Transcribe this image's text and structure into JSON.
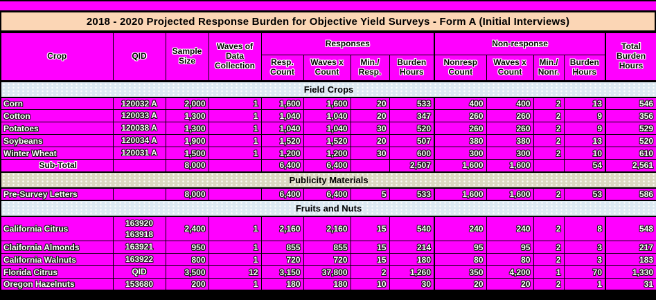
{
  "title": "2018 - 2020 Projected Response Burden for Objective Yield Surveys - Form A (Initial Interviews)",
  "colors": {
    "table_background": "#FF00FF",
    "title_background": "#FBD6B5",
    "section_band_blue": "#DCE9F2",
    "section_band_khaki": "#DBD8C1",
    "border": "#000000",
    "data_text": "#FFFFFF",
    "header_text": "#000000"
  },
  "header": {
    "crop": "Crop",
    "qid": "QID",
    "sample_size": "Sample Size",
    "waves_of_data_collection": "Waves of Data Collection",
    "responses": "Responses",
    "non_response": "Non-response",
    "total_burden_hours": "Total Burden Hours",
    "resp_subcols": [
      "Resp. Count",
      "Waves x Count",
      "Min./ Resp.",
      "Burden Hours"
    ],
    "nonresp_subcols": [
      "Nonresp Count",
      "Waves x Count",
      "Min./ Nonr.",
      "Burden Hours"
    ]
  },
  "sections": [
    {
      "name": "Field Crops",
      "band_color": "blue",
      "rows": [
        {
          "crop": "Corn",
          "qid": "120032 A",
          "values": [
            "2,000",
            "1",
            "1,600",
            "1,600",
            "20",
            "533",
            "400",
            "400",
            "2",
            "13",
            "546"
          ]
        },
        {
          "crop": "Cotton",
          "qid": "120033 A",
          "values": [
            "1,300",
            "1",
            "1,040",
            "1,040",
            "20",
            "347",
            "260",
            "260",
            "2",
            "9",
            "356"
          ]
        },
        {
          "crop": "Potatoes",
          "qid": "120038 A",
          "values": [
            "1,300",
            "1",
            "1,040",
            "1,040",
            "30",
            "520",
            "260",
            "260",
            "2",
            "9",
            "529"
          ]
        },
        {
          "crop": "Soybeans",
          "qid": "120034 A",
          "values": [
            "1,900",
            "1",
            "1,520",
            "1,520",
            "20",
            "507",
            "380",
            "380",
            "2",
            "13",
            "520"
          ]
        },
        {
          "crop": "Winter Wheat",
          "qid": "120031 A",
          "values": [
            "1,500",
            "1",
            "1,200",
            "1,200",
            "30",
            "600",
            "300",
            "300",
            "2",
            "10",
            "610"
          ]
        },
        {
          "crop": "Sub-Total",
          "qid": "",
          "subtotal": true,
          "values": [
            "8,000",
            "",
            "6,400",
            "6,400",
            "",
            "2,507",
            "1,600",
            "1,600",
            "",
            "54",
            "2,561"
          ]
        }
      ]
    },
    {
      "name": "Publicity Materials",
      "band_color": "khaki",
      "rows": [
        {
          "crop": "Pre-Survey Letters",
          "qid": "",
          "values": [
            "8,000",
            "",
            "6,400",
            "6,400",
            "5",
            "533",
            "1,600",
            "1,600",
            "2",
            "53",
            "586"
          ]
        }
      ]
    },
    {
      "name": "Fruits and Nuts",
      "band_color": "blue",
      "rows": [
        {
          "crop": "California Citrus",
          "qid": "163920\n163918",
          "tall": true,
          "values": [
            "2,400",
            "1",
            "2,160",
            "2,160",
            "15",
            "540",
            "240",
            "240",
            "2",
            "8",
            "548"
          ]
        },
        {
          "crop": "Claifornia Almonds",
          "qid": "163921",
          "values": [
            "950",
            "1",
            "855",
            "855",
            "15",
            "214",
            "95",
            "95",
            "2",
            "3",
            "217"
          ]
        },
        {
          "crop": "California Walnuts",
          "qid": "163922",
          "values": [
            "800",
            "1",
            "720",
            "720",
            "15",
            "180",
            "80",
            "80",
            "2",
            "3",
            "183"
          ]
        },
        {
          "crop": "Florida Citrus",
          "qid": "QID",
          "values": [
            "3,500",
            "12",
            "3,150",
            "37,800",
            "2",
            "1,260",
            "350",
            "4,200",
            "1",
            "70",
            "1,330"
          ]
        },
        {
          "crop": "Oregon Hazelnuts",
          "qid": "153680",
          "values": [
            "200",
            "1",
            "180",
            "180",
            "10",
            "30",
            "20",
            "20",
            "2",
            "1",
            "31"
          ]
        }
      ]
    }
  ]
}
